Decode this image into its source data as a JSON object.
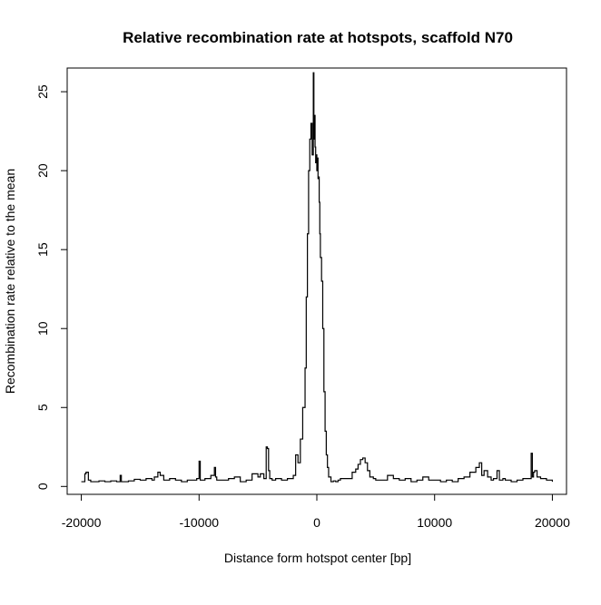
{
  "chart_data": {
    "type": "line",
    "title": "Relative recombination rate at hotspots, scaffold N70",
    "xlabel": "Distance form hotspot center [bp]",
    "ylabel": "Recombination rate relative to the mean",
    "xlim": [
      -21200,
      21200
    ],
    "ylim": [
      -0.5,
      26.5
    ],
    "x_ticks": [
      -20000,
      -10000,
      0,
      10000,
      20000
    ],
    "x_tick_labels": [
      "-20000",
      "-10000",
      "0",
      "10000",
      "20000"
    ],
    "y_ticks": [
      0,
      5,
      10,
      15,
      20,
      25
    ],
    "y_tick_labels": [
      "0",
      "5",
      "10",
      "15",
      "20",
      "25"
    ],
    "grid": false,
    "line_color": "#000000",
    "series": [
      {
        "x": [
          -20000,
          -19700,
          -19600,
          -19400,
          -19200,
          -19000,
          -18500,
          -18000,
          -17500,
          -17000,
          -16700,
          -16600,
          -16000,
          -15500,
          -15000,
          -14500,
          -14000,
          -13800,
          -13500,
          -13300,
          -13000,
          -12500,
          -12000,
          -11500,
          -11000,
          -10500,
          -10200,
          -10000,
          -9900,
          -9500,
          -9000,
          -8700,
          -8600,
          -8500,
          -8000,
          -7500,
          -7000,
          -6500,
          -6000,
          -5500,
          -5000,
          -4800,
          -4500,
          -4300,
          -4200,
          -4100,
          -4000,
          -3800,
          -3500,
          -3000,
          -2500,
          -2000,
          -1800,
          -1600,
          -1400,
          -1200,
          -1000,
          -900,
          -800,
          -700,
          -600,
          -500,
          -400,
          -300,
          -250,
          -200,
          -150,
          -100,
          -50,
          0,
          50,
          100,
          150,
          200,
          250,
          300,
          400,
          500,
          600,
          700,
          800,
          900,
          1000,
          1200,
          1400,
          1600,
          1800,
          2000,
          2500,
          3000,
          3300,
          3500,
          3700,
          3900,
          4100,
          4300,
          4500,
          4800,
          5000,
          5500,
          6000,
          6500,
          7000,
          7500,
          8000,
          8500,
          9000,
          9500,
          10000,
          10500,
          11000,
          11500,
          12000,
          12500,
          13000,
          13500,
          13800,
          14000,
          14200,
          14500,
          14800,
          15000,
          15300,
          15500,
          15800,
          16000,
          16500,
          17000,
          17500,
          18000,
          18200,
          18300,
          18400,
          18500,
          18700,
          19000,
          19500,
          20000
        ],
        "y": [
          0.3,
          0.8,
          0.9,
          0.4,
          0.3,
          0.3,
          0.35,
          0.3,
          0.35,
          0.3,
          0.7,
          0.3,
          0.35,
          0.45,
          0.4,
          0.5,
          0.4,
          0.6,
          0.9,
          0.7,
          0.4,
          0.5,
          0.4,
          0.3,
          0.4,
          0.4,
          0.5,
          1.6,
          0.4,
          0.5,
          0.7,
          1.2,
          0.6,
          0.4,
          0.4,
          0.5,
          0.6,
          0.3,
          0.4,
          0.8,
          0.6,
          0.8,
          0.5,
          2.5,
          2.4,
          1.0,
          0.5,
          0.4,
          0.5,
          0.4,
          0.5,
          0.7,
          2.0,
          1.5,
          3.0,
          5.0,
          7.5,
          12.0,
          16.0,
          20.0,
          22.0,
          23.0,
          21.0,
          26.2,
          22.0,
          23.5,
          21.5,
          20.5,
          21.0,
          20.0,
          20.8,
          19.5,
          19.6,
          18.0,
          16.0,
          14.5,
          13.0,
          10.0,
          6.0,
          3.5,
          2.0,
          1.2,
          0.6,
          0.3,
          0.35,
          0.3,
          0.4,
          0.5,
          0.5,
          0.9,
          1.1,
          1.4,
          1.7,
          1.8,
          1.5,
          1.0,
          0.6,
          0.5,
          0.4,
          0.4,
          0.7,
          0.5,
          0.4,
          0.5,
          0.3,
          0.4,
          0.6,
          0.4,
          0.4,
          0.3,
          0.4,
          0.3,
          0.5,
          0.6,
          0.9,
          1.2,
          1.5,
          0.7,
          1.0,
          0.6,
          0.4,
          0.5,
          1.0,
          0.4,
          0.5,
          0.4,
          0.3,
          0.4,
          0.5,
          0.5,
          2.1,
          0.6,
          0.9,
          1.0,
          0.6,
          0.5,
          0.4,
          0.3
        ]
      }
    ]
  }
}
